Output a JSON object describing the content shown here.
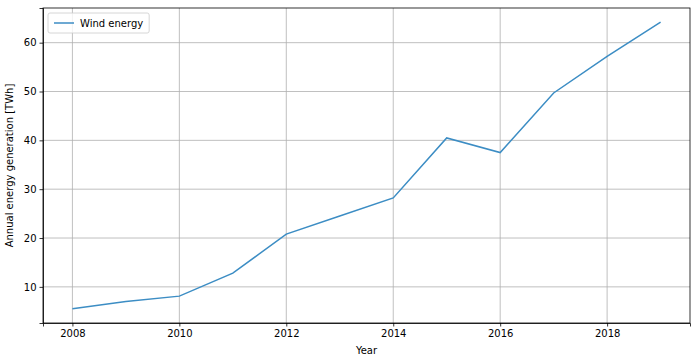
{
  "chart_data": {
    "type": "line",
    "x_label": "Year",
    "y_label": "Annual energy generation [TWh]",
    "x": [
      2008,
      2009,
      2010,
      2011,
      2012,
      2013,
      2014,
      2015,
      2016,
      2017,
      2018,
      2019
    ],
    "series": [
      {
        "name": "Wind energy",
        "color": "#3c8dc4",
        "values": [
          5.5,
          7.0,
          8.1,
          12.8,
          20.8,
          24.5,
          28.2,
          40.5,
          37.5,
          49.7,
          57.2,
          64.2
        ]
      }
    ],
    "xlim": [
      2007.45,
      2019.55
    ],
    "xticks": [
      2008,
      2010,
      2012,
      2014,
      2016,
      2018
    ],
    "ylim": [
      2.6,
      67.1
    ],
    "yticks": [
      10,
      20,
      30,
      40,
      50,
      60
    ],
    "grid": true,
    "legend": "upper-left"
  }
}
